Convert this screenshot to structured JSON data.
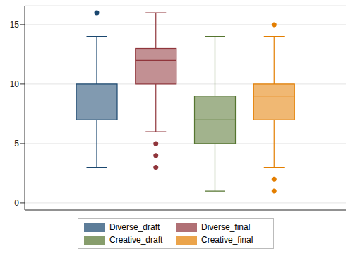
{
  "chart_data": {
    "type": "box",
    "ylim": [
      -0.6,
      16.6
    ],
    "yticks": [
      0,
      5,
      10,
      15
    ],
    "grid": true,
    "tick_labels": "y",
    "legend": "bottom",
    "series": [
      {
        "name": "Diverse_draft",
        "color": "#1a476f",
        "min": 3,
        "q1": 7,
        "median": 8,
        "q3": 10,
        "max": 14,
        "outliers": [
          16
        ]
      },
      {
        "name": "Diverse_final",
        "color": "#90353b",
        "min": 6,
        "q1": 10,
        "median": 12,
        "q3": 13,
        "max": 16,
        "outliers": [
          5,
          4,
          3
        ]
      },
      {
        "name": "Creative_draft",
        "color": "#55752f",
        "min": 1,
        "q1": 5,
        "median": 7,
        "q3": 9,
        "max": 14,
        "outliers": []
      },
      {
        "name": "Creative_final",
        "color": "#e37e00",
        "min": 3,
        "q1": 7,
        "median": 9,
        "q3": 10,
        "max": 14,
        "outliers": [
          15,
          2,
          1
        ]
      }
    ]
  }
}
